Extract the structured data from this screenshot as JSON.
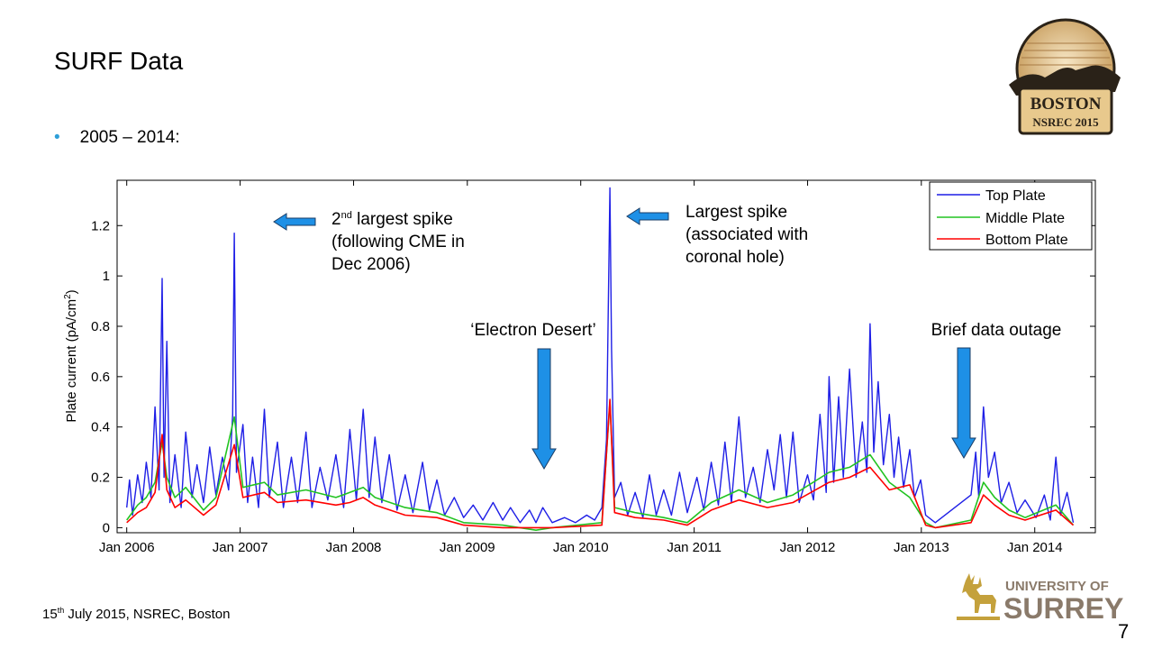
{
  "slide": {
    "title": "SURF Data",
    "bullet": "2005 – 2014:",
    "footer_day": "15",
    "footer_suffix": "th",
    "footer_rest": " July 2015, NSREC, Boston",
    "page_number": "7"
  },
  "logos": {
    "boston_line1": "BOSTON",
    "boston_line2": "NSREC 2015",
    "surrey_line1": "UNIVERSITY OF",
    "surrey_line2": "SURREY"
  },
  "colors": {
    "top_plate": "#1f1fe6",
    "middle_plate": "#22c322",
    "bottom_plate": "#ff0000",
    "arrow_fill": "#1e90e6",
    "bullet": "#2e9fd8"
  },
  "chart_data": {
    "type": "line",
    "title": "",
    "xlabel": "",
    "ylabel": "Plate current (pA/cm²)",
    "ylim": [
      -0.02,
      1.38
    ],
    "xlim": [
      "2005-12-01",
      "2014-07-15"
    ],
    "grid": false,
    "legend_position": "top-right",
    "x_ticks": [
      "Jan 2006",
      "Jan 2007",
      "Jan 2008",
      "Jan 2009",
      "Jan 2010",
      "Jan 2011",
      "Jan 2012",
      "Jan 2013",
      "Jan 2014"
    ],
    "y_ticks": [
      "0",
      "0.2",
      "0.4",
      "0.6",
      "0.8",
      "1",
      "1.2"
    ],
    "series": [
      {
        "name": "Top Plate",
        "points": [
          [
            "2006-01-01",
            0.08
          ],
          [
            "2006-01-10",
            0.19
          ],
          [
            "2006-01-20",
            0.05
          ],
          [
            "2006-02-05",
            0.21
          ],
          [
            "2006-02-20",
            0.1
          ],
          [
            "2006-03-05",
            0.26
          ],
          [
            "2006-03-20",
            0.12
          ],
          [
            "2006-04-02",
            0.48
          ],
          [
            "2006-04-15",
            0.15
          ],
          [
            "2006-04-25",
            0.99
          ],
          [
            "2006-05-01",
            0.2
          ],
          [
            "2006-05-10",
            0.74
          ],
          [
            "2006-05-20",
            0.1
          ],
          [
            "2006-06-05",
            0.29
          ],
          [
            "2006-06-25",
            0.08
          ],
          [
            "2006-07-10",
            0.38
          ],
          [
            "2006-07-30",
            0.12
          ],
          [
            "2006-08-15",
            0.25
          ],
          [
            "2006-09-05",
            0.1
          ],
          [
            "2006-09-25",
            0.32
          ],
          [
            "2006-10-15",
            0.13
          ],
          [
            "2006-11-05",
            0.28
          ],
          [
            "2006-11-25",
            0.15
          ],
          [
            "2006-12-08",
            0.45
          ],
          [
            "2006-12-13",
            1.17
          ],
          [
            "2006-12-20",
            0.22
          ],
          [
            "2007-01-10",
            0.41
          ],
          [
            "2007-01-25",
            0.1
          ],
          [
            "2007-02-10",
            0.28
          ],
          [
            "2007-03-01",
            0.08
          ],
          [
            "2007-03-20",
            0.47
          ],
          [
            "2007-04-05",
            0.12
          ],
          [
            "2007-05-01",
            0.34
          ],
          [
            "2007-05-20",
            0.08
          ],
          [
            "2007-06-15",
            0.28
          ],
          [
            "2007-07-05",
            0.1
          ],
          [
            "2007-08-01",
            0.38
          ],
          [
            "2007-08-20",
            0.08
          ],
          [
            "2007-09-15",
            0.24
          ],
          [
            "2007-10-10",
            0.11
          ],
          [
            "2007-11-05",
            0.29
          ],
          [
            "2007-11-30",
            0.08
          ],
          [
            "2007-12-20",
            0.39
          ],
          [
            "2008-01-10",
            0.11
          ],
          [
            "2008-02-01",
            0.47
          ],
          [
            "2008-02-20",
            0.12
          ],
          [
            "2008-03-10",
            0.36
          ],
          [
            "2008-04-01",
            0.1
          ],
          [
            "2008-04-25",
            0.29
          ],
          [
            "2008-05-20",
            0.07
          ],
          [
            "2008-06-15",
            0.21
          ],
          [
            "2008-07-10",
            0.06
          ],
          [
            "2008-08-10",
            0.26
          ],
          [
            "2008-09-01",
            0.07
          ],
          [
            "2008-09-25",
            0.19
          ],
          [
            "2008-10-20",
            0.05
          ],
          [
            "2008-11-20",
            0.12
          ],
          [
            "2008-12-20",
            0.04
          ],
          [
            "2009-01-20",
            0.09
          ],
          [
            "2009-02-20",
            0.03
          ],
          [
            "2009-03-25",
            0.1
          ],
          [
            "2009-04-25",
            0.03
          ],
          [
            "2009-05-20",
            0.08
          ],
          [
            "2009-06-20",
            0.02
          ],
          [
            "2009-07-20",
            0.07
          ],
          [
            "2009-08-10",
            0.02
          ],
          [
            "2009-09-01",
            0.08
          ],
          [
            "2009-10-01",
            0.02
          ],
          [
            "2009-11-10",
            0.04
          ],
          [
            "2009-12-15",
            0.02
          ],
          [
            "2010-01-20",
            0.05
          ],
          [
            "2010-02-15",
            0.03
          ],
          [
            "2010-03-10",
            0.08
          ],
          [
            "2010-03-25",
            0.35
          ],
          [
            "2010-04-05",
            1.35
          ],
          [
            "2010-04-10",
            0.71
          ],
          [
            "2010-04-20",
            0.12
          ],
          [
            "2010-05-10",
            0.18
          ],
          [
            "2010-06-01",
            0.05
          ],
          [
            "2010-06-25",
            0.14
          ],
          [
            "2010-07-20",
            0.04
          ],
          [
            "2010-08-10",
            0.21
          ],
          [
            "2010-09-01",
            0.05
          ],
          [
            "2010-09-25",
            0.15
          ],
          [
            "2010-10-20",
            0.05
          ],
          [
            "2010-11-15",
            0.22
          ],
          [
            "2010-12-10",
            0.06
          ],
          [
            "2011-01-10",
            0.2
          ],
          [
            "2011-02-01",
            0.07
          ],
          [
            "2011-02-25",
            0.26
          ],
          [
            "2011-03-20",
            0.09
          ],
          [
            "2011-04-10",
            0.34
          ],
          [
            "2011-05-01",
            0.1
          ],
          [
            "2011-05-25",
            0.44
          ],
          [
            "2011-06-15",
            0.12
          ],
          [
            "2011-07-10",
            0.24
          ],
          [
            "2011-08-01",
            0.1
          ],
          [
            "2011-08-25",
            0.31
          ],
          [
            "2011-09-15",
            0.15
          ],
          [
            "2011-10-05",
            0.37
          ],
          [
            "2011-10-25",
            0.12
          ],
          [
            "2011-11-15",
            0.38
          ],
          [
            "2011-12-05",
            0.1
          ],
          [
            "2012-01-01",
            0.21
          ],
          [
            "2012-01-20",
            0.11
          ],
          [
            "2012-02-10",
            0.45
          ],
          [
            "2012-03-01",
            0.14
          ],
          [
            "2012-03-10",
            0.6
          ],
          [
            "2012-03-25",
            0.18
          ],
          [
            "2012-04-10",
            0.52
          ],
          [
            "2012-04-25",
            0.2
          ],
          [
            "2012-05-15",
            0.63
          ],
          [
            "2012-06-05",
            0.2
          ],
          [
            "2012-06-25",
            0.42
          ],
          [
            "2012-07-10",
            0.22
          ],
          [
            "2012-07-20",
            0.81
          ],
          [
            "2012-08-01",
            0.3
          ],
          [
            "2012-08-15",
            0.58
          ],
          [
            "2012-09-01",
            0.25
          ],
          [
            "2012-09-20",
            0.45
          ],
          [
            "2012-10-05",
            0.2
          ],
          [
            "2012-10-20",
            0.36
          ],
          [
            "2012-11-05",
            0.16
          ],
          [
            "2012-11-25",
            0.31
          ],
          [
            "2012-12-10",
            0.12
          ],
          [
            "2012-12-30",
            0.19
          ],
          [
            "2013-01-15",
            0.05
          ],
          [
            "2013-02-15",
            0.02
          ],
          [
            "2013-06-10",
            0.13
          ],
          [
            "2013-06-25",
            0.3
          ],
          [
            "2013-07-05",
            0.12
          ],
          [
            "2013-07-20",
            0.48
          ],
          [
            "2013-08-05",
            0.2
          ],
          [
            "2013-08-25",
            0.3
          ],
          [
            "2013-09-15",
            0.1
          ],
          [
            "2013-10-10",
            0.18
          ],
          [
            "2013-11-05",
            0.06
          ],
          [
            "2013-12-01",
            0.11
          ],
          [
            "2014-01-05",
            0.04
          ],
          [
            "2014-02-01",
            0.13
          ],
          [
            "2014-02-20",
            0.03
          ],
          [
            "2014-03-10",
            0.28
          ],
          [
            "2014-03-25",
            0.05
          ],
          [
            "2014-04-15",
            0.14
          ],
          [
            "2014-05-05",
            0.02
          ]
        ]
      },
      {
        "name": "Middle Plate",
        "points": [
          [
            "2006-01-01",
            0.03
          ],
          [
            "2006-02-05",
            0.09
          ],
          [
            "2006-03-05",
            0.12
          ],
          [
            "2006-04-02",
            0.18
          ],
          [
            "2006-04-25",
            0.34
          ],
          [
            "2006-05-10",
            0.2
          ],
          [
            "2006-06-05",
            0.12
          ],
          [
            "2006-07-10",
            0.16
          ],
          [
            "2006-09-05",
            0.07
          ],
          [
            "2006-10-15",
            0.12
          ],
          [
            "2006-12-13",
            0.44
          ],
          [
            "2007-01-10",
            0.16
          ],
          [
            "2007-03-20",
            0.18
          ],
          [
            "2007-05-01",
            0.13
          ],
          [
            "2007-08-01",
            0.15
          ],
          [
            "2007-11-05",
            0.12
          ],
          [
            "2007-12-20",
            0.14
          ],
          [
            "2008-02-01",
            0.16
          ],
          [
            "2008-03-10",
            0.12
          ],
          [
            "2008-06-15",
            0.08
          ],
          [
            "2008-09-25",
            0.06
          ],
          [
            "2008-12-20",
            0.02
          ],
          [
            "2009-04-25",
            0.01
          ],
          [
            "2009-08-10",
            -0.01
          ],
          [
            "2009-10-01",
            0.0
          ],
          [
            "2010-03-10",
            0.02
          ],
          [
            "2010-04-05",
            0.5
          ],
          [
            "2010-04-20",
            0.08
          ],
          [
            "2010-06-25",
            0.06
          ],
          [
            "2010-09-25",
            0.04
          ],
          [
            "2010-12-10",
            0.02
          ],
          [
            "2011-02-25",
            0.1
          ],
          [
            "2011-05-25",
            0.15
          ],
          [
            "2011-08-25",
            0.1
          ],
          [
            "2011-11-15",
            0.13
          ],
          [
            "2012-03-10",
            0.22
          ],
          [
            "2012-05-15",
            0.24
          ],
          [
            "2012-07-20",
            0.29
          ],
          [
            "2012-09-20",
            0.18
          ],
          [
            "2012-11-25",
            0.12
          ],
          [
            "2013-01-15",
            0.02
          ],
          [
            "2013-02-15",
            0.0
          ],
          [
            "2013-06-10",
            0.03
          ],
          [
            "2013-07-20",
            0.18
          ],
          [
            "2013-08-25",
            0.12
          ],
          [
            "2013-10-10",
            0.07
          ],
          [
            "2013-12-01",
            0.04
          ],
          [
            "2014-03-10",
            0.09
          ],
          [
            "2014-05-05",
            0.01
          ]
        ]
      },
      {
        "name": "Bottom Plate",
        "points": [
          [
            "2006-01-01",
            0.02
          ],
          [
            "2006-02-05",
            0.06
          ],
          [
            "2006-03-05",
            0.08
          ],
          [
            "2006-04-02",
            0.14
          ],
          [
            "2006-04-25",
            0.37
          ],
          [
            "2006-05-10",
            0.15
          ],
          [
            "2006-06-05",
            0.08
          ],
          [
            "2006-07-10",
            0.11
          ],
          [
            "2006-09-05",
            0.05
          ],
          [
            "2006-10-15",
            0.09
          ],
          [
            "2006-12-13",
            0.33
          ],
          [
            "2007-01-10",
            0.12
          ],
          [
            "2007-03-20",
            0.14
          ],
          [
            "2007-05-01",
            0.1
          ],
          [
            "2007-08-01",
            0.11
          ],
          [
            "2007-11-05",
            0.09
          ],
          [
            "2007-12-20",
            0.1
          ],
          [
            "2008-02-01",
            0.12
          ],
          [
            "2008-03-10",
            0.09
          ],
          [
            "2008-06-15",
            0.05
          ],
          [
            "2008-09-25",
            0.04
          ],
          [
            "2008-12-20",
            0.01
          ],
          [
            "2009-04-25",
            0.0
          ],
          [
            "2009-08-10",
            0.0
          ],
          [
            "2009-10-01",
            0.0
          ],
          [
            "2010-03-10",
            0.01
          ],
          [
            "2010-04-05",
            0.51
          ],
          [
            "2010-04-20",
            0.06
          ],
          [
            "2010-06-25",
            0.04
          ],
          [
            "2010-09-25",
            0.03
          ],
          [
            "2010-12-10",
            0.01
          ],
          [
            "2011-02-25",
            0.07
          ],
          [
            "2011-05-25",
            0.11
          ],
          [
            "2011-08-25",
            0.08
          ],
          [
            "2011-11-15",
            0.1
          ],
          [
            "2012-03-10",
            0.18
          ],
          [
            "2012-05-15",
            0.2
          ],
          [
            "2012-07-20",
            0.24
          ],
          [
            "2012-09-20",
            0.15
          ],
          [
            "2012-11-25",
            0.17
          ],
          [
            "2013-01-15",
            0.01
          ],
          [
            "2013-02-15",
            0.0
          ],
          [
            "2013-06-10",
            0.02
          ],
          [
            "2013-07-20",
            0.13
          ],
          [
            "2013-08-25",
            0.09
          ],
          [
            "2013-10-10",
            0.05
          ],
          [
            "2013-12-01",
            0.03
          ],
          [
            "2014-03-10",
            0.07
          ],
          [
            "2014-05-05",
            0.01
          ]
        ]
      }
    ],
    "annotations": [
      {
        "id": "second",
        "lines": [
          "2nd largest spike",
          "(following CME in",
          "Dec 2006)"
        ],
        "superscript": "nd"
      },
      {
        "id": "largest",
        "lines": [
          "Largest spike",
          "(associated with",
          "coronal hole)"
        ]
      },
      {
        "id": "desert",
        "lines": [
          "‘Electron Desert’"
        ]
      },
      {
        "id": "outage",
        "lines": [
          "Brief data outage"
        ]
      }
    ]
  }
}
